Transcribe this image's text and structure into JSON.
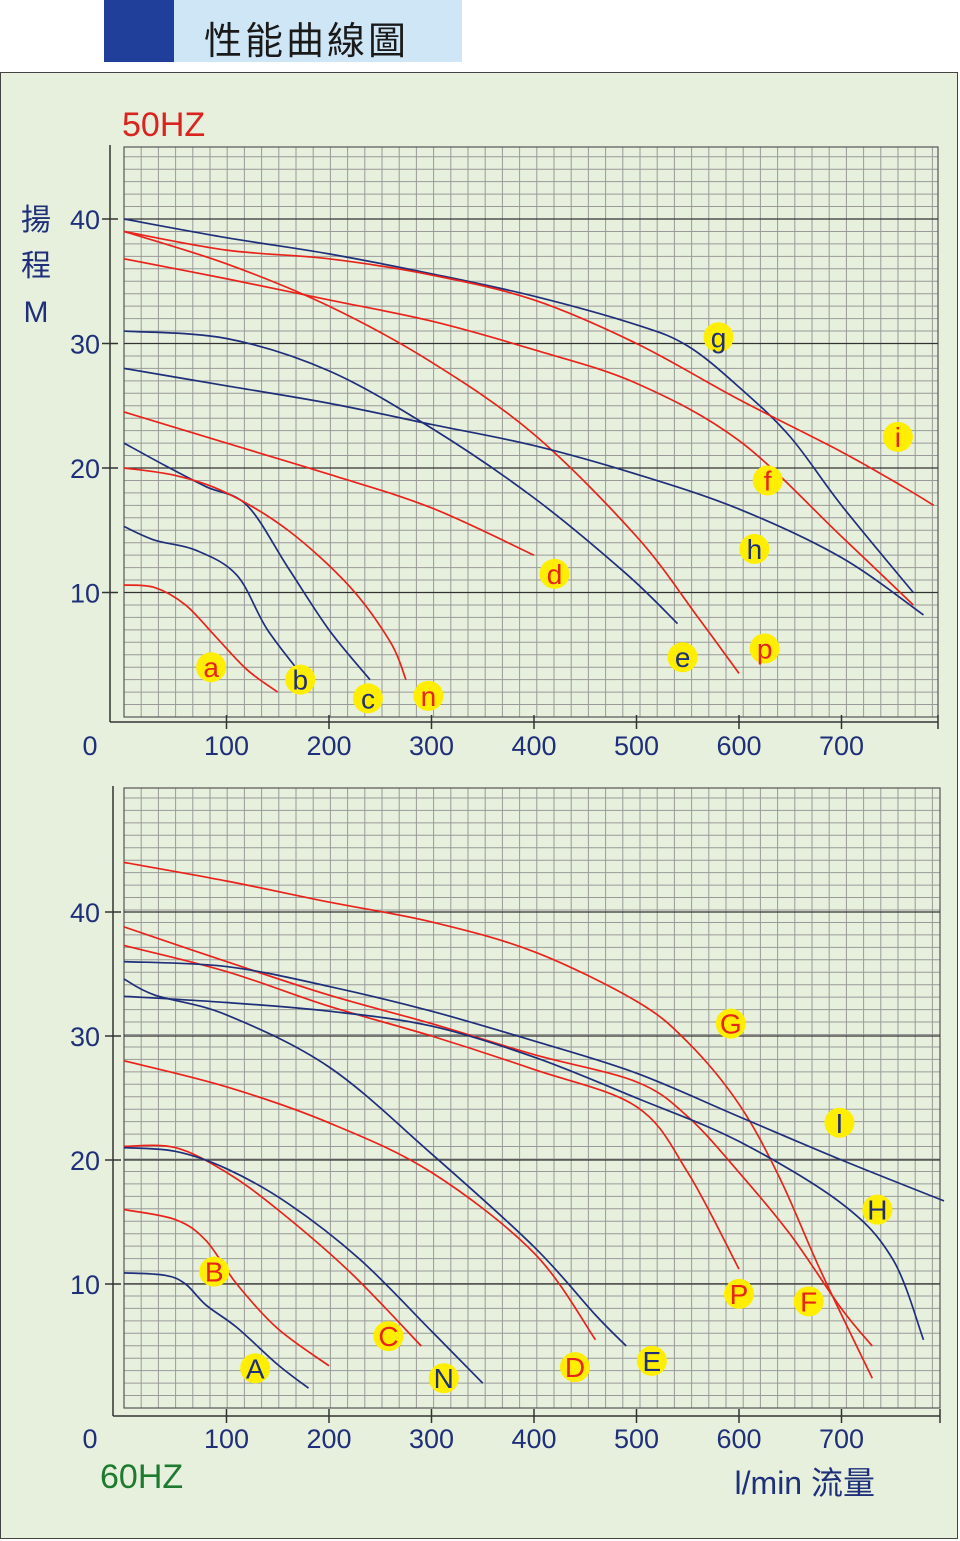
{
  "page": {
    "title": "性能曲線圖"
  },
  "colors": {
    "axis_text": "#1f2f7a",
    "red_curve": "#e8231c",
    "blue_curve": "#1f2f7a",
    "label_50": "#d9231f",
    "label_60": "#1e7a2e",
    "marker_fill": "#ffee00",
    "grid_minor": "#9a9a9a",
    "grid_major": "#333333"
  },
  "chart_data": [
    {
      "type": "line",
      "title": "50HZ",
      "ylabel": "揚程 M",
      "xlabel": "",
      "xlim": [
        0,
        800
      ],
      "ylim": [
        0,
        46
      ],
      "x_ticks": [
        100,
        200,
        300,
        400,
        500,
        600,
        700
      ],
      "y_ticks": [
        10,
        20,
        30,
        40
      ],
      "x_origin_label": "0",
      "y_unit": "M",
      "grid": true,
      "series": [
        {
          "name": "a",
          "color": "red",
          "points": [
            [
              0,
              10.6
            ],
            [
              30,
              10.4
            ],
            [
              60,
              9
            ],
            [
              90,
              6.4
            ],
            [
              120,
              3.8
            ],
            [
              150,
              2
            ]
          ],
          "label_pos": [
            85,
            4
          ]
        },
        {
          "name": "b",
          "color": "blue",
          "points": [
            [
              0,
              15.3
            ],
            [
              30,
              14.2
            ],
            [
              70,
              13.4
            ],
            [
              110,
              11.4
            ],
            [
              140,
              7
            ],
            [
              180,
              2.7
            ]
          ],
          "label_pos": [
            172,
            3
          ]
        },
        {
          "name": "c",
          "color": "blue",
          "points": [
            [
              0,
              22
            ],
            [
              40,
              20.2
            ],
            [
              80,
              18.5
            ],
            [
              120,
              17
            ],
            [
              160,
              12
            ],
            [
              200,
              7
            ],
            [
              240,
              3
            ]
          ],
          "label_pos": [
            238,
            1.5
          ]
        },
        {
          "name": "n",
          "color": "red",
          "points": [
            [
              0,
              20
            ],
            [
              50,
              19.4
            ],
            [
              100,
              18
            ],
            [
              160,
              15
            ],
            [
              220,
              10.5
            ],
            [
              260,
              6
            ],
            [
              275,
              3
            ]
          ],
          "label_pos": [
            297,
            1.7
          ]
        },
        {
          "name": "d",
          "color": "red",
          "points": [
            [
              0,
              24.5
            ],
            [
              100,
              22
            ],
            [
              200,
              19.5
            ],
            [
              300,
              16.8
            ],
            [
              400,
              13
            ]
          ],
          "label_pos": [
            420,
            11.5
          ]
        },
        {
          "name": "e",
          "color": "blue",
          "points": [
            [
              0,
              31
            ],
            [
              100,
              30.4
            ],
            [
              200,
              27.8
            ],
            [
              300,
              23.2
            ],
            [
              400,
              17.6
            ],
            [
              490,
              11.5
            ],
            [
              540,
              7.5
            ]
          ],
          "label_pos": [
            545,
            4.8
          ]
        },
        {
          "name": "p",
          "color": "red",
          "points": [
            [
              0,
              39
            ],
            [
              100,
              36.4
            ],
            [
              200,
              33
            ],
            [
              300,
              28.5
            ],
            [
              400,
              22.7
            ],
            [
              500,
              14.5
            ],
            [
              560,
              8
            ],
            [
              600,
              3.5
            ]
          ],
          "label_pos": [
            625,
            5.5
          ]
        },
        {
          "name": "h",
          "color": "blue",
          "points": [
            [
              0,
              28
            ],
            [
              100,
              26.6
            ],
            [
              200,
              25.2
            ],
            [
              300,
              23.5
            ],
            [
              400,
              21.8
            ],
            [
              500,
              19.5
            ],
            [
              600,
              16.7
            ],
            [
              700,
              12.8
            ],
            [
              780,
              8.2
            ]
          ],
          "label_pos": [
            615,
            13.5
          ]
        },
        {
          "name": "f",
          "color": "red",
          "points": [
            [
              0,
              36.8
            ],
            [
              100,
              35.2
            ],
            [
              200,
              33.5
            ],
            [
              300,
              31.8
            ],
            [
              400,
              29.5
            ],
            [
              500,
              26.8
            ],
            [
              600,
              22.2
            ],
            [
              700,
              14.5
            ],
            [
              770,
              9
            ]
          ],
          "label_pos": [
            628,
            19
          ]
        },
        {
          "name": "g",
          "color": "blue",
          "points": [
            [
              0,
              40
            ],
            [
              100,
              38.5
            ],
            [
              200,
              37.2
            ],
            [
              300,
              35.6
            ],
            [
              400,
              33.8
            ],
            [
              500,
              31.5
            ],
            [
              550,
              29.8
            ],
            [
              600,
              26.5
            ],
            [
              650,
              22.5
            ],
            [
              700,
              17
            ],
            [
              770,
              10
            ]
          ],
          "label_pos": [
            580,
            30.5
          ]
        },
        {
          "name": "i",
          "color": "red",
          "points": [
            [
              0,
              39
            ],
            [
              100,
              37.5
            ],
            [
              200,
              36.8
            ],
            [
              300,
              35.5
            ],
            [
              400,
              33.5
            ],
            [
              500,
              30
            ],
            [
              600,
              25.5
            ],
            [
              700,
              21.3
            ],
            [
              760,
              18.5
            ],
            [
              790,
              17
            ]
          ],
          "label_pos": [
            755,
            22.5
          ]
        }
      ]
    },
    {
      "type": "line",
      "title": "60HZ",
      "ylabel": "",
      "xlabel": "l/min 流量",
      "xlim": [
        0,
        800
      ],
      "ylim": [
        0,
        50
      ],
      "x_ticks": [
        100,
        200,
        300,
        400,
        500,
        600,
        700
      ],
      "y_ticks": [
        10,
        20,
        30,
        40
      ],
      "x_origin_label": "0",
      "grid": true,
      "series": [
        {
          "name": "A",
          "color": "blue",
          "points": [
            [
              0,
              10.9
            ],
            [
              40,
              10.7
            ],
            [
              60,
              10
            ],
            [
              80,
              8.3
            ],
            [
              110,
              6.5
            ],
            [
              150,
              3.5
            ],
            [
              180,
              1.6
            ]
          ],
          "label_pos": [
            128,
            3.2
          ]
        },
        {
          "name": "B",
          "color": "red",
          "points": [
            [
              0,
              16
            ],
            [
              50,
              15.2
            ],
            [
              80,
              13.5
            ],
            [
              110,
              10
            ],
            [
              150,
              6.4
            ],
            [
              200,
              3.4
            ]
          ],
          "label_pos": [
            88,
            11
          ]
        },
        {
          "name": "C",
          "color": "red",
          "points": [
            [
              0,
              21.1
            ],
            [
              50,
              21
            ],
            [
              100,
              19
            ],
            [
              150,
              16
            ],
            [
              220,
              11
            ],
            [
              290,
              5
            ]
          ],
          "label_pos": [
            258,
            5.8
          ]
        },
        {
          "name": "N",
          "color": "blue",
          "points": [
            [
              0,
              21
            ],
            [
              50,
              20.7
            ],
            [
              100,
              19.3
            ],
            [
              160,
              16.5
            ],
            [
              230,
              12
            ],
            [
              300,
              6.2
            ],
            [
              350,
              2
            ]
          ],
          "label_pos": [
            312,
            2.4
          ]
        },
        {
          "name": "D",
          "color": "red",
          "points": [
            [
              0,
              28
            ],
            [
              100,
              25.9
            ],
            [
              200,
              23
            ],
            [
              300,
              19
            ],
            [
              400,
              12.5
            ],
            [
              460,
              5.5
            ]
          ],
          "label_pos": [
            440,
            3.3
          ]
        },
        {
          "name": "E",
          "color": "blue",
          "points": [
            [
              0,
              34.6
            ],
            [
              30,
              33.3
            ],
            [
              100,
              31.7
            ],
            [
              200,
              27.5
            ],
            [
              300,
              20.5
            ],
            [
              400,
              13
            ],
            [
              460,
              7.5
            ],
            [
              490,
              5
            ]
          ],
          "label_pos": [
            515,
            3.8
          ]
        },
        {
          "name": "P",
          "color": "red",
          "points": [
            [
              0,
              37.3
            ],
            [
              100,
              35.2
            ],
            [
              200,
              32.4
            ],
            [
              300,
              30
            ],
            [
              400,
              27.3
            ],
            [
              500,
              24.3
            ],
            [
              550,
              19
            ],
            [
              600,
              11.2
            ]
          ],
          "label_pos": [
            600,
            9.2
          ]
        },
        {
          "name": "F",
          "color": "red",
          "points": [
            [
              0,
              38.8
            ],
            [
              100,
              36
            ],
            [
              200,
              33.3
            ],
            [
              300,
              31
            ],
            [
              400,
              28.5
            ],
            [
              500,
              26.3
            ],
            [
              550,
              23.5
            ],
            [
              600,
              19
            ],
            [
              650,
              14
            ],
            [
              700,
              8
            ],
            [
              730,
              5
            ]
          ],
          "label_pos": [
            668,
            8.6
          ]
        },
        {
          "name": "G",
          "color": "red",
          "points": [
            [
              0,
              44
            ],
            [
              100,
              42.5
            ],
            [
              200,
              40.8
            ],
            [
              300,
              39.2
            ],
            [
              400,
              36.8
            ],
            [
              500,
              32.8
            ],
            [
              550,
              29.5
            ],
            [
              600,
              24.5
            ],
            [
              640,
              18.5
            ],
            [
              680,
              11
            ],
            [
              730,
              2.4
            ]
          ],
          "label_pos": [
            592,
            31
          ]
        },
        {
          "name": "H",
          "color": "blue",
          "points": [
            [
              0,
              33.2
            ],
            [
              100,
              32.7
            ],
            [
              200,
              32
            ],
            [
              300,
              30.8
            ],
            [
              400,
              28.3
            ],
            [
              500,
              25
            ],
            [
              600,
              21.5
            ],
            [
              700,
              16.5
            ],
            [
              750,
              12
            ],
            [
              780,
              5.5
            ]
          ],
          "label_pos": [
            735,
            16
          ]
        },
        {
          "name": "I",
          "color": "blue",
          "points": [
            [
              0,
              36
            ],
            [
              100,
              35.6
            ],
            [
              200,
              34
            ],
            [
              300,
              32
            ],
            [
              400,
              29.6
            ],
            [
              500,
              27
            ],
            [
              600,
              23.5
            ],
            [
              700,
              20
            ],
            [
              800,
              16.7
            ]
          ],
          "label_pos": [
            698,
            23
          ]
        }
      ]
    }
  ]
}
